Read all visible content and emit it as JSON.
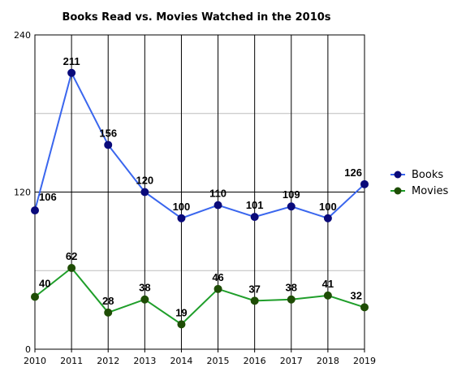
{
  "chart_data": {
    "type": "line",
    "title": "Books Read vs. Movies Watched in the 2010s",
    "x": [
      "2010",
      "2011",
      "2012",
      "2013",
      "2014",
      "2015",
      "2016",
      "2017",
      "2018",
      "2019"
    ],
    "y_ticks": [
      "0",
      "120",
      "240"
    ],
    "ylim": [
      0,
      240
    ],
    "grid": true,
    "legend_position": "right",
    "series": [
      {
        "name": "Books",
        "color": "#3a66ee",
        "marker_color": "#0a0a7a",
        "values": [
          106,
          211,
          156,
          120,
          100,
          110,
          101,
          109,
          100,
          126
        ],
        "labels": [
          "106",
          "211",
          "156",
          "120",
          "100",
          "110",
          "101",
          "109",
          "100",
          "126"
        ]
      },
      {
        "name": "Movies",
        "color": "#1f9e2a",
        "marker_color": "#1e4d05",
        "values": [
          40,
          62,
          28,
          38,
          19,
          46,
          37,
          38,
          41,
          32
        ],
        "labels": [
          "40",
          "62",
          "28",
          "38",
          "19",
          "46",
          "37",
          "38",
          "41",
          "32"
        ]
      }
    ]
  }
}
